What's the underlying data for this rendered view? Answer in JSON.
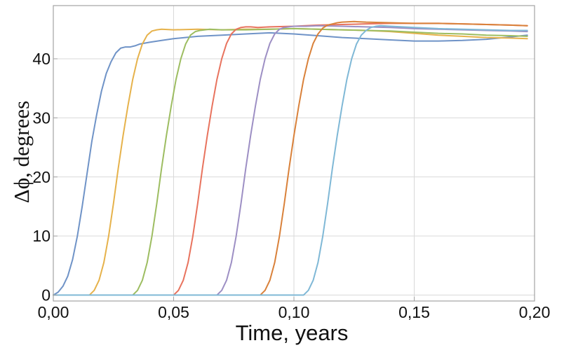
{
  "chart_data": {
    "type": "line",
    "title": "",
    "xlabel": "Time, years",
    "ylabel": "Δϕ, degrees",
    "xlim": [
      0.0,
      0.2
    ],
    "ylim": [
      -1,
      49
    ],
    "grid": true,
    "legend": "none",
    "x_ticks": [
      {
        "value": 0.0,
        "label": "0,00"
      },
      {
        "value": 0.05,
        "label": "0,05"
      },
      {
        "value": 0.1,
        "label": "0,10"
      },
      {
        "value": 0.15,
        "label": "0,15"
      },
      {
        "value": 0.2,
        "label": "0,20"
      }
    ],
    "y_ticks": [
      {
        "value": 0,
        "label": "0"
      },
      {
        "value": 10,
        "label": "10"
      },
      {
        "value": 20,
        "label": "20"
      },
      {
        "value": 30,
        "label": "30"
      },
      {
        "value": 40,
        "label": "40"
      }
    ],
    "series": [
      {
        "color": "#6f93c7",
        "x": [
          0.0,
          0.002,
          0.004,
          0.006,
          0.008,
          0.01,
          0.012,
          0.014,
          0.016,
          0.018,
          0.02,
          0.022,
          0.024,
          0.026,
          0.028,
          0.03,
          0.032,
          0.034,
          0.036,
          0.04,
          0.045,
          0.05,
          0.06,
          0.07,
          0.08,
          0.09,
          0.1,
          0.11,
          0.12,
          0.13,
          0.14,
          0.15,
          0.16,
          0.17,
          0.18,
          0.19,
          0.197
        ],
        "y": [
          0.0,
          0.5,
          1.5,
          3.2,
          6.0,
          10.0,
          15.0,
          20.5,
          26.0,
          30.5,
          34.5,
          37.5,
          39.5,
          41.0,
          41.8,
          42.0,
          42.0,
          42.2,
          42.5,
          42.8,
          43.1,
          43.4,
          43.8,
          44.0,
          44.2,
          44.4,
          44.2,
          43.9,
          43.6,
          43.4,
          43.2,
          43.0,
          43.0,
          43.1,
          43.3,
          43.7,
          44.0
        ]
      },
      {
        "color": "#e6b24b",
        "x": [
          0.0,
          0.015,
          0.017,
          0.019,
          0.021,
          0.023,
          0.025,
          0.027,
          0.029,
          0.031,
          0.033,
          0.035,
          0.037,
          0.039,
          0.041,
          0.043,
          0.045,
          0.05,
          0.06,
          0.07,
          0.08,
          0.09,
          0.1,
          0.11,
          0.12,
          0.13,
          0.14,
          0.15,
          0.16,
          0.17,
          0.18,
          0.19,
          0.197
        ],
        "y": [
          0.0,
          0.0,
          0.8,
          2.5,
          5.5,
          10.0,
          15.5,
          21.5,
          27.0,
          32.0,
          36.5,
          40.0,
          42.5,
          44.0,
          44.7,
          44.9,
          45.0,
          44.9,
          45.0,
          44.9,
          45.0,
          45.0,
          45.1,
          45.0,
          44.9,
          44.8,
          44.6,
          44.3,
          44.0,
          43.8,
          43.6,
          43.5,
          43.4
        ]
      },
      {
        "color": "#9dbd61",
        "x": [
          0.0,
          0.033,
          0.035,
          0.037,
          0.039,
          0.041,
          0.043,
          0.045,
          0.047,
          0.049,
          0.051,
          0.053,
          0.055,
          0.057,
          0.059,
          0.061,
          0.063,
          0.065,
          0.07,
          0.08,
          0.09,
          0.1,
          0.11,
          0.12,
          0.13,
          0.14,
          0.15,
          0.16,
          0.17,
          0.18,
          0.19,
          0.197
        ],
        "y": [
          0.0,
          0.0,
          0.8,
          2.5,
          5.5,
          10.0,
          15.5,
          21.5,
          27.0,
          32.0,
          36.5,
          40.0,
          42.5,
          44.0,
          44.6,
          44.8,
          44.9,
          45.0,
          44.9,
          44.9,
          45.0,
          45.1,
          45.0,
          44.9,
          44.8,
          44.7,
          44.5,
          44.3,
          44.2,
          44.0,
          43.9,
          43.8
        ]
      },
      {
        "color": "#e8735e",
        "x": [
          0.0,
          0.05,
          0.052,
          0.054,
          0.056,
          0.058,
          0.06,
          0.062,
          0.064,
          0.066,
          0.068,
          0.07,
          0.072,
          0.074,
          0.076,
          0.078,
          0.08,
          0.082,
          0.085,
          0.09,
          0.1,
          0.11,
          0.12,
          0.13,
          0.14,
          0.15,
          0.16,
          0.17,
          0.18,
          0.19,
          0.197
        ],
        "y": [
          0.0,
          0.0,
          0.8,
          2.5,
          5.5,
          10.0,
          15.5,
          21.5,
          27.0,
          32.0,
          36.5,
          40.0,
          42.6,
          44.2,
          45.0,
          45.3,
          45.4,
          45.4,
          45.3,
          45.4,
          45.5,
          45.7,
          45.8,
          45.9,
          46.0,
          46.0,
          46.0,
          45.9,
          45.8,
          45.7,
          45.6
        ]
      },
      {
        "color": "#9d8fc4",
        "x": [
          0.0,
          0.068,
          0.07,
          0.072,
          0.074,
          0.076,
          0.078,
          0.08,
          0.082,
          0.084,
          0.086,
          0.088,
          0.09,
          0.092,
          0.094,
          0.096,
          0.098,
          0.1,
          0.105,
          0.11,
          0.12,
          0.13,
          0.14,
          0.15,
          0.16,
          0.17,
          0.18,
          0.19,
          0.197
        ],
        "y": [
          0.0,
          0.0,
          0.8,
          2.5,
          5.5,
          10.0,
          15.5,
          21.5,
          27.0,
          32.0,
          36.5,
          40.0,
          42.6,
          44.2,
          45.0,
          45.3,
          45.4,
          45.5,
          45.5,
          45.6,
          45.5,
          45.4,
          45.3,
          45.1,
          45.0,
          44.9,
          44.8,
          44.7,
          44.6
        ]
      },
      {
        "color": "#d9813a",
        "x": [
          0.0,
          0.086,
          0.088,
          0.09,
          0.092,
          0.094,
          0.096,
          0.098,
          0.1,
          0.102,
          0.104,
          0.106,
          0.108,
          0.11,
          0.112,
          0.114,
          0.116,
          0.118,
          0.12,
          0.125,
          0.13,
          0.14,
          0.15,
          0.16,
          0.17,
          0.18,
          0.19,
          0.197
        ],
        "y": [
          0.0,
          0.0,
          0.8,
          2.5,
          5.5,
          10.0,
          15.5,
          21.5,
          27.0,
          32.0,
          36.5,
          40.0,
          42.6,
          44.2,
          45.2,
          45.7,
          45.9,
          46.1,
          46.2,
          46.3,
          46.2,
          46.1,
          46.0,
          46.0,
          45.9,
          45.8,
          45.7,
          45.6
        ]
      },
      {
        "color": "#7fb8d6",
        "x": [
          0.0,
          0.104,
          0.106,
          0.108,
          0.11,
          0.112,
          0.114,
          0.116,
          0.118,
          0.12,
          0.122,
          0.124,
          0.126,
          0.128,
          0.13,
          0.132,
          0.134,
          0.136,
          0.14,
          0.145,
          0.15,
          0.16,
          0.17,
          0.18,
          0.19,
          0.197
        ],
        "y": [
          0.0,
          0.0,
          0.8,
          2.5,
          5.5,
          10.0,
          15.5,
          21.5,
          27.0,
          32.0,
          36.5,
          40.0,
          42.5,
          44.0,
          44.8,
          45.3,
          45.5,
          45.6,
          45.5,
          45.4,
          45.3,
          45.1,
          45.0,
          44.9,
          44.8,
          44.8
        ]
      }
    ]
  },
  "colors": {
    "frame": "#a3a3a3",
    "grid": "#d9d9d9",
    "background": "#ffffff"
  }
}
